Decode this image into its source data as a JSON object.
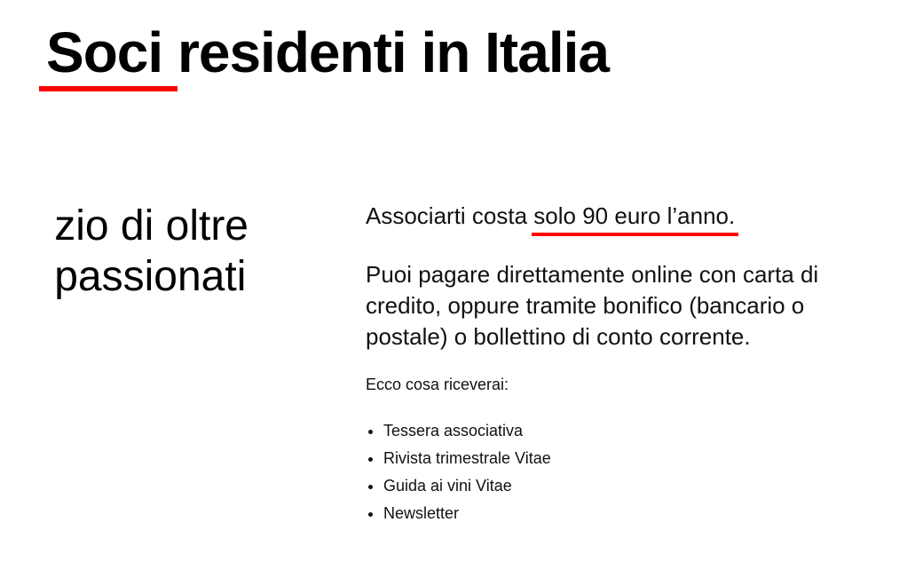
{
  "title": {
    "text": "Soci residenti in Italia",
    "underline_color": "#ff0000"
  },
  "left_column": {
    "line1": "zio di oltre",
    "line2": "passionati"
  },
  "right_column": {
    "lead_prefix": "Associarti costa ",
    "lead_highlight": "solo 90 euro l’anno.",
    "payment_paragraph": "Puoi pagare direttamente online con carta di credito, oppure tramite bonifico (bancario o postale) o bollettino di conto corrente.",
    "benefits_intro": "Ecco cosa riceverai:",
    "benefits": [
      "Tessera associativa",
      "Rivista trimestrale Vitae",
      "Guida ai vini Vitae",
      "Newsletter"
    ]
  }
}
